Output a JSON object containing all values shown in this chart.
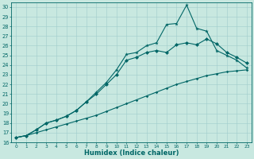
{
  "xlabel": "Humidex (Indice chaleur)",
  "bg_color": "#c8e8e0",
  "line_color": "#006666",
  "grid_color": "#a0cccc",
  "xlim": [
    -0.5,
    23.5
  ],
  "ylim": [
    16,
    30.5
  ],
  "yticks": [
    16,
    17,
    18,
    19,
    20,
    21,
    22,
    23,
    24,
    25,
    26,
    27,
    28,
    29,
    30
  ],
  "xticks": [
    0,
    1,
    2,
    3,
    4,
    5,
    6,
    7,
    8,
    9,
    10,
    11,
    12,
    13,
    14,
    15,
    16,
    17,
    18,
    19,
    20,
    21,
    22,
    23
  ],
  "line1_x": [
    0,
    1,
    2,
    3,
    4,
    5,
    6,
    7,
    8,
    9,
    10,
    11,
    12,
    13,
    14,
    15,
    16,
    17,
    18,
    19,
    20,
    21,
    22,
    23
  ],
  "line1_y": [
    16.5,
    16.7,
    17.0,
    17.3,
    17.6,
    17.9,
    18.2,
    18.5,
    18.8,
    19.2,
    19.6,
    20.0,
    20.4,
    20.8,
    21.2,
    21.6,
    22.0,
    22.3,
    22.6,
    22.9,
    23.1,
    23.3,
    23.4,
    23.5
  ],
  "line2_x": [
    0,
    1,
    2,
    3,
    4,
    5,
    6,
    7,
    8,
    9,
    10,
    11,
    12,
    13,
    14,
    15,
    16,
    17,
    18,
    19,
    20,
    21,
    22,
    23
  ],
  "line2_y": [
    16.5,
    16.7,
    17.3,
    18.0,
    18.3,
    18.7,
    19.3,
    20.2,
    21.0,
    22.0,
    23.0,
    24.5,
    24.8,
    25.3,
    25.5,
    25.3,
    26.1,
    26.3,
    26.1,
    26.7,
    26.2,
    25.3,
    24.8,
    24.2
  ],
  "line3_x": [
    0,
    1,
    2,
    3,
    4,
    5,
    6,
    7,
    8,
    9,
    10,
    11,
    12,
    13,
    14,
    15,
    16,
    17,
    18,
    19,
    20,
    21,
    22,
    23
  ],
  "line3_y": [
    16.5,
    16.7,
    17.3,
    18.0,
    18.3,
    18.7,
    19.3,
    20.2,
    21.2,
    22.2,
    23.5,
    25.1,
    25.3,
    26.0,
    26.3,
    28.2,
    28.3,
    30.2,
    27.8,
    27.5,
    25.5,
    25.0,
    24.5,
    23.7
  ],
  "marker2": "D",
  "marker3": "*",
  "ms2": 2.5,
  "ms3": 3.5,
  "lw": 0.8,
  "tick_fontsize": 5.0,
  "xlabel_fontsize": 6.0
}
